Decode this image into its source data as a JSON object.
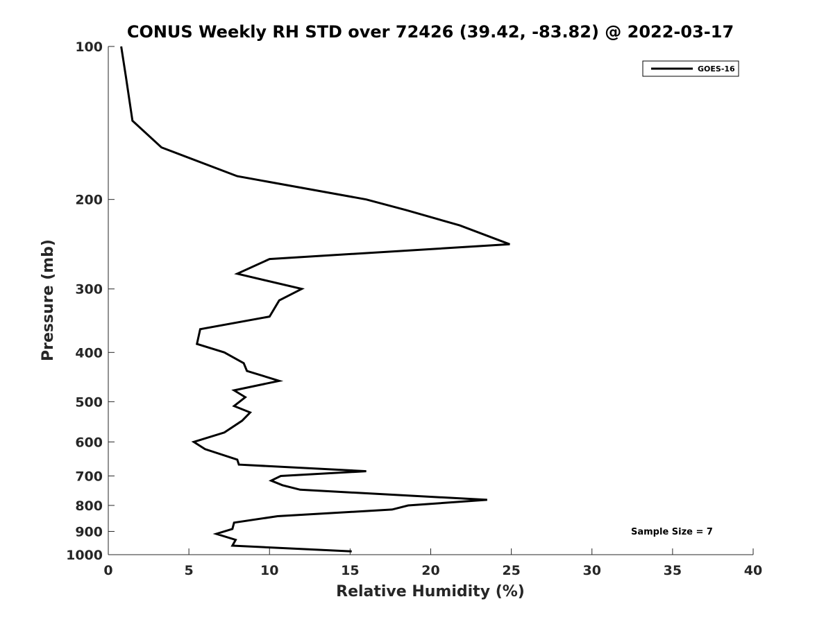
{
  "chart_data": {
    "type": "line",
    "title": "CONUS Weekly RH STD over 72426 (39.42, -83.82) @ 2022-03-17",
    "xlabel": "Relative Humidity (%)",
    "ylabel": "Pressure (mb)",
    "xlim": [
      0,
      40
    ],
    "ylim": [
      100,
      1000
    ],
    "yscale": "log",
    "yreversed": true,
    "grid": false,
    "legend_position": "top-right",
    "x_ticks": [
      "0",
      "5",
      "10",
      "15",
      "20",
      "25",
      "30",
      "35",
      "40"
    ],
    "y_ticks": [
      "100",
      "200",
      "300",
      "400",
      "500",
      "600",
      "700",
      "800",
      "900",
      "1000"
    ],
    "annotation": "Sample Size = 7",
    "series": [
      {
        "name": "GOES-16",
        "color": "#000000",
        "x": [
          0.8,
          1.1,
          1.5,
          3.3,
          8.0,
          16.0,
          18.5,
          21.8,
          24.9,
          10.0,
          8.0,
          12.0,
          10.6,
          10.0,
          5.7,
          5.5,
          7.2,
          8.4,
          8.6,
          10.6,
          7.8,
          8.5,
          7.8,
          8.8,
          8.3,
          7.2,
          5.3,
          6.0,
          8.0,
          8.1,
          16.0,
          10.7,
          10.1,
          10.8,
          11.9,
          23.5,
          18.6,
          17.6,
          10.5,
          7.8,
          7.7,
          6.7,
          7.9,
          7.7,
          15.1
        ],
        "y": [
          100,
          115,
          140,
          158,
          180,
          200,
          210,
          225,
          245,
          262,
          280,
          300,
          316,
          340,
          360,
          385,
          400,
          420,
          435,
          455,
          475,
          490,
          510,
          525,
          545,
          575,
          600,
          620,
          650,
          665,
          685,
          700,
          715,
          730,
          745,
          780,
          800,
          815,
          840,
          865,
          890,
          910,
          935,
          960,
          985
        ]
      }
    ]
  }
}
